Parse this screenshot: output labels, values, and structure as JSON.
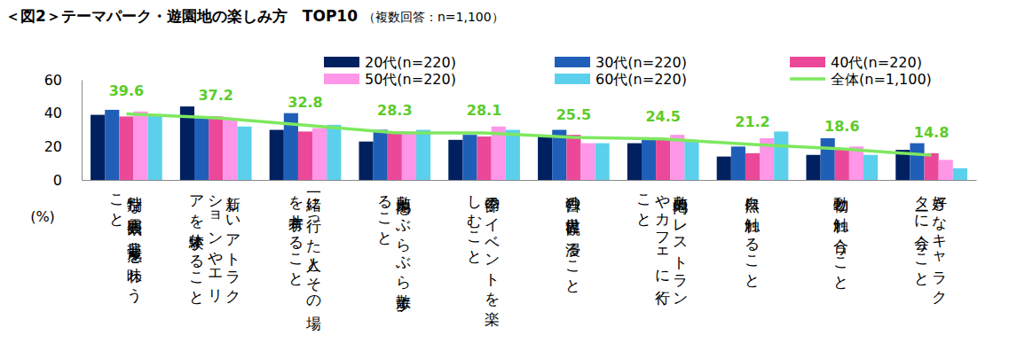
{
  "chart_data": {
    "type": "bar",
    "title": "＜図2＞テーマパーク・遊園地の楽しみ方　TOP10",
    "subtitle": "（複数回答：n=1,100）",
    "y_label": "(%)",
    "categories": [
      "特別な雰囲気や非日常感を味わうこと",
      "新しいアトラクションやエリアを体験すること",
      "一緒に行った人とその場を共有すること",
      "敷地内をぶらぶら散歩すること",
      "季節のイベントを楽しむこと",
      "独自の世界観に浸ること",
      "敷地内のレストランやカフェに行くこと",
      "自然に触れること",
      "動物と触れ合うこと",
      "好きなキャラクターに会うこと"
    ],
    "series": [
      {
        "name": "20代(n=220)",
        "type": "bar",
        "color": "#002060",
        "values": [
          39,
          44,
          30,
          23,
          24,
          26,
          22,
          14,
          15,
          18
        ]
      },
      {
        "name": "30代(n=220)",
        "type": "bar",
        "color": "#1f5fb8",
        "values": [
          42,
          37,
          40,
          30,
          27,
          30,
          25,
          20,
          25,
          22
        ]
      },
      {
        "name": "40代(n=220)",
        "type": "bar",
        "color": "#ec4899",
        "values": [
          38,
          38,
          29,
          29,
          26,
          27,
          24,
          16,
          19,
          16
        ]
      },
      {
        "name": "50代(n=220)",
        "type": "bar",
        "color": "#ff96e8",
        "values": [
          41,
          36,
          31,
          29,
          32,
          22,
          27,
          25,
          20,
          12
        ]
      },
      {
        "name": "60代(n=220)",
        "type": "bar",
        "color": "#5bd0ec",
        "values": [
          39,
          32,
          33,
          30,
          30,
          22,
          24,
          29,
          15,
          7
        ]
      },
      {
        "name": "全体(n=1,100)",
        "type": "line",
        "color": "#7ee860",
        "marker": "none",
        "line_style": "solid",
        "data_labels": true,
        "values": [
          39.6,
          37.2,
          32.8,
          28.3,
          28.1,
          25.5,
          24.5,
          21.2,
          18.6,
          14.8
        ]
      }
    ],
    "ylim": [
      0,
      60
    ],
    "yticks": [
      0,
      20,
      40,
      60
    ],
    "grid": false,
    "legend": "top"
  }
}
